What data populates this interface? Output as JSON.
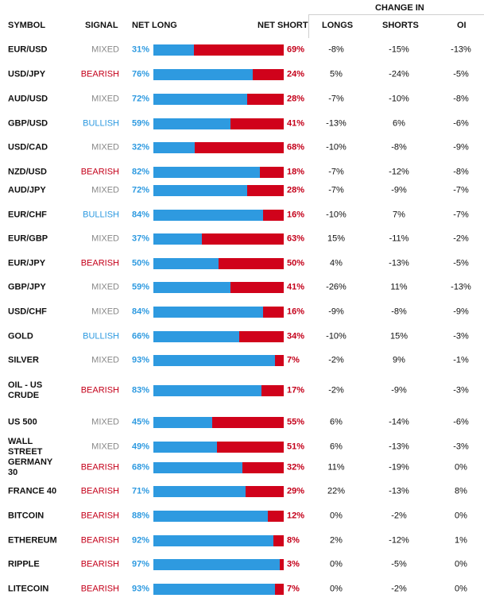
{
  "header": {
    "change_in": "CHANGE IN",
    "symbol": "SYMBOL",
    "signal": "SIGNAL",
    "net_long": "NET LONG",
    "net_short": "NET SHORT",
    "longs": "LONGS",
    "shorts": "SHORTS",
    "oi": "OI"
  },
  "colors": {
    "long": "#2e9ae0",
    "short": "#d0021b",
    "mixed": "#888888"
  },
  "rows": [
    {
      "symbol": "EUR/USD",
      "signal": "MIXED",
      "net_long": "31%",
      "net_short": "69%",
      "longs": "-8%",
      "shorts": "-15%",
      "oi": "-13%",
      "long_pct": 31
    },
    {
      "symbol": "USD/JPY",
      "signal": "BEARISH",
      "net_long": "76%",
      "net_short": "24%",
      "longs": "5%",
      "shorts": "-24%",
      "oi": "-5%",
      "long_pct": 76
    },
    {
      "symbol": "AUD/USD",
      "signal": "MIXED",
      "net_long": "72%",
      "net_short": "28%",
      "longs": "-7%",
      "shorts": "-10%",
      "oi": "-8%",
      "long_pct": 72
    },
    {
      "symbol": "GBP/USD",
      "signal": "BULLISH",
      "net_long": "59%",
      "net_short": "41%",
      "longs": "-13%",
      "shorts": "6%",
      "oi": "-6%",
      "long_pct": 59
    },
    {
      "symbol": "USD/CAD",
      "signal": "MIXED",
      "net_long": "32%",
      "net_short": "68%",
      "longs": "-10%",
      "shorts": "-8%",
      "oi": "-9%",
      "long_pct": 32
    },
    {
      "symbol": "NZD/USD",
      "signal": "BEARISH",
      "net_long": "82%",
      "net_short": "18%",
      "longs": "-7%",
      "shorts": "-12%",
      "oi": "-8%",
      "long_pct": 82
    },
    {
      "symbol": "AUD/JPY",
      "signal": "MIXED",
      "net_long": "72%",
      "net_short": "28%",
      "longs": "-7%",
      "shorts": "-9%",
      "oi": "-7%",
      "long_pct": 72
    },
    {
      "symbol": "EUR/CHF",
      "signal": "BULLISH",
      "net_long": "84%",
      "net_short": "16%",
      "longs": "-10%",
      "shorts": "7%",
      "oi": "-7%",
      "long_pct": 84
    },
    {
      "symbol": "EUR/GBP",
      "signal": "MIXED",
      "net_long": "37%",
      "net_short": "63%",
      "longs": "15%",
      "shorts": "-11%",
      "oi": "-2%",
      "long_pct": 37
    },
    {
      "symbol": "EUR/JPY",
      "signal": "BEARISH",
      "net_long": "50%",
      "net_short": "50%",
      "longs": "4%",
      "shorts": "-13%",
      "oi": "-5%",
      "long_pct": 50
    },
    {
      "symbol": "GBP/JPY",
      "signal": "MIXED",
      "net_long": "59%",
      "net_short": "41%",
      "longs": "-26%",
      "shorts": "11%",
      "oi": "-13%",
      "long_pct": 59
    },
    {
      "symbol": "USD/CHF",
      "signal": "MIXED",
      "net_long": "84%",
      "net_short": "16%",
      "longs": "-9%",
      "shorts": "-8%",
      "oi": "-9%",
      "long_pct": 84
    },
    {
      "symbol": "GOLD",
      "signal": "BULLISH",
      "net_long": "66%",
      "net_short": "34%",
      "longs": "-10%",
      "shorts": "15%",
      "oi": "-3%",
      "long_pct": 66
    },
    {
      "symbol": "SILVER",
      "signal": "MIXED",
      "net_long": "93%",
      "net_short": "7%",
      "longs": "-2%",
      "shorts": "9%",
      "oi": "-1%",
      "long_pct": 93
    },
    {
      "symbol": "OIL - US CRUDE",
      "signal": "BEARISH",
      "net_long": "83%",
      "net_short": "17%",
      "longs": "-2%",
      "shorts": "-9%",
      "oi": "-3%",
      "long_pct": 83
    },
    {
      "symbol": "US 500",
      "signal": "MIXED",
      "net_long": "45%",
      "net_short": "55%",
      "longs": "6%",
      "shorts": "-14%",
      "oi": "-6%",
      "long_pct": 45
    },
    {
      "symbol": "WALL STREET",
      "signal": "MIXED",
      "net_long": "49%",
      "net_short": "51%",
      "longs": "6%",
      "shorts": "-13%",
      "oi": "-3%",
      "long_pct": 49
    },
    {
      "symbol": "GERMANY 30",
      "signal": "BEARISH",
      "net_long": "68%",
      "net_short": "32%",
      "longs": "11%",
      "shorts": "-19%",
      "oi": "0%",
      "long_pct": 68
    },
    {
      "symbol": "FRANCE 40",
      "signal": "BEARISH",
      "net_long": "71%",
      "net_short": "29%",
      "longs": "22%",
      "shorts": "-13%",
      "oi": "8%",
      "long_pct": 71
    },
    {
      "symbol": "BITCOIN",
      "signal": "BEARISH",
      "net_long": "88%",
      "net_short": "12%",
      "longs": "0%",
      "shorts": "-2%",
      "oi": "0%",
      "long_pct": 88
    },
    {
      "symbol": "ETHEREUM",
      "signal": "BEARISH",
      "net_long": "92%",
      "net_short": "8%",
      "longs": "2%",
      "shorts": "-12%",
      "oi": "1%",
      "long_pct": 92
    },
    {
      "symbol": "RIPPLE",
      "signal": "BEARISH",
      "net_long": "97%",
      "net_short": "3%",
      "longs": "0%",
      "shorts": "-5%",
      "oi": "0%",
      "long_pct": 97
    },
    {
      "symbol": "LITECOIN",
      "signal": "BEARISH",
      "net_long": "93%",
      "net_short": "7%",
      "longs": "0%",
      "shorts": "-2%",
      "oi": "0%",
      "long_pct": 93
    }
  ]
}
